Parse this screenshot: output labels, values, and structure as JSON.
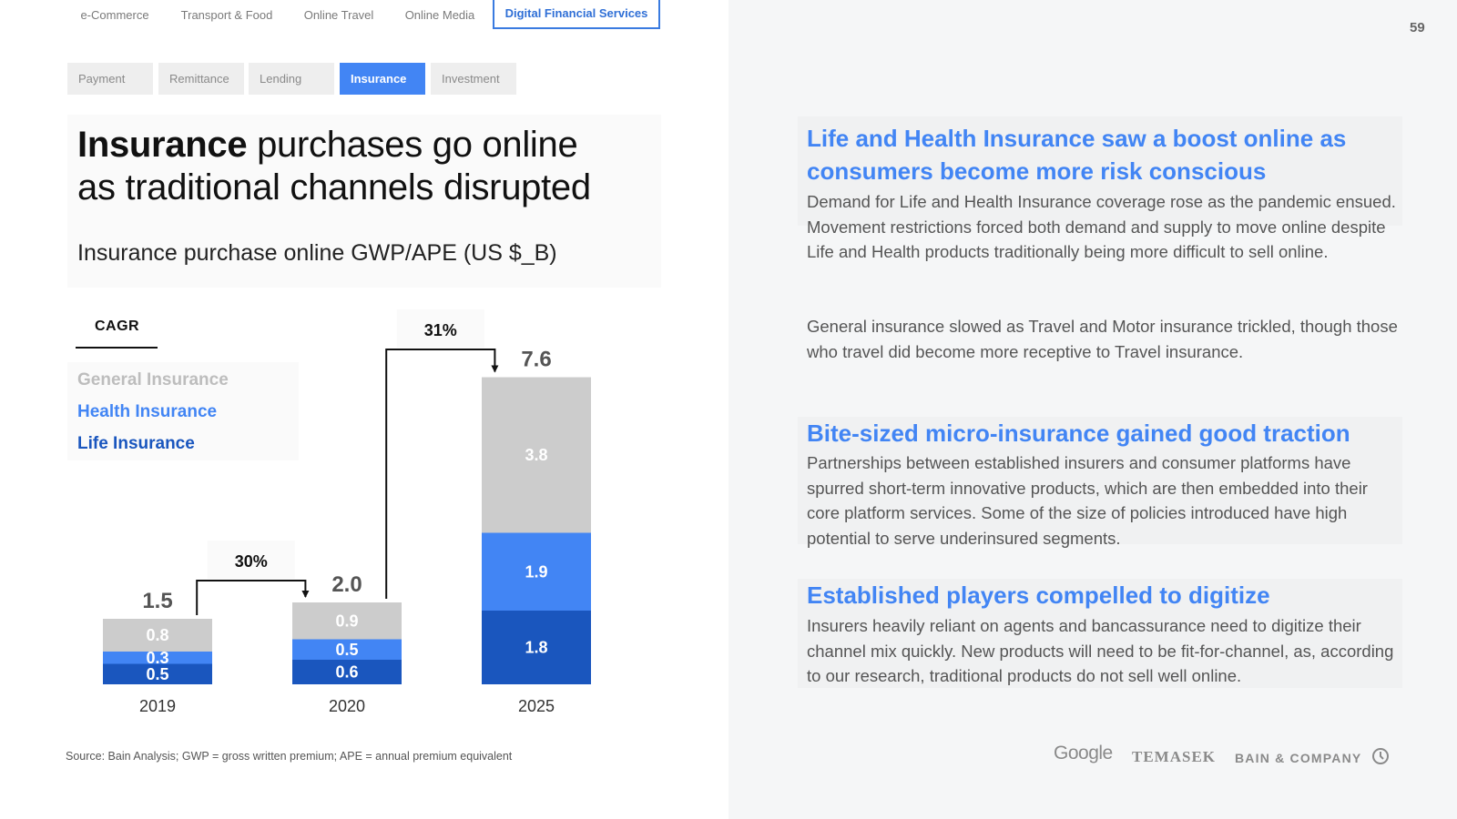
{
  "page_number": "59",
  "top_tabs": [
    {
      "label": "e-Commerce",
      "active": false
    },
    {
      "label": "Transport & Food",
      "active": false
    },
    {
      "label": "Online Travel",
      "active": false
    },
    {
      "label": "Online Media",
      "active": false
    },
    {
      "label": "Digital Financial Services",
      "active": true
    }
  ],
  "sub_tabs": [
    {
      "label": "Payment",
      "active": false
    },
    {
      "label": "Remittance",
      "active": false
    },
    {
      "label": "Lending",
      "active": false
    },
    {
      "label": "Insurance",
      "active": true
    },
    {
      "label": "Investment",
      "active": false
    }
  ],
  "title_bold": "Insurance",
  "title_rest_1": " purchases go online",
  "title_line_2": "as traditional channels disrupted",
  "colors": {
    "accent": "#4285f4",
    "life": "#1a56be",
    "health": "#4285f4",
    "general": "#cccccc",
    "tab_border": "#3a7be0"
  },
  "chart_data": {
    "type": "bar",
    "stacked": true,
    "title": "Insurance purchase online GWP/APE (US $_B)",
    "categories": [
      "2019",
      "2020",
      "2025"
    ],
    "series": [
      {
        "name": "Life Insurance",
        "color": "#1a56be",
        "values": [
          0.5,
          0.6,
          1.8
        ]
      },
      {
        "name": "Health Insurance",
        "color": "#4285f4",
        "values": [
          0.3,
          0.5,
          1.9
        ]
      },
      {
        "name": "General Insurance",
        "color": "#cccccc",
        "values": [
          0.8,
          0.9,
          3.8
        ]
      }
    ],
    "totals": [
      "1.5",
      "2.0",
      "7.6"
    ],
    "segment_labels": [
      [
        "0.5",
        "0.3",
        "0.8"
      ],
      [
        "0.6",
        "0.5",
        "0.9"
      ],
      [
        "1.8",
        "1.9",
        "3.8"
      ]
    ],
    "cagr_label": "CAGR",
    "cagr": [
      {
        "from": "2019",
        "to": "2020",
        "label": "30%"
      },
      {
        "from": "2020",
        "to": "2025",
        "label": "31%"
      }
    ],
    "legend_order": [
      "General Insurance",
      "Health Insurance",
      "Life Insurance"
    ]
  },
  "source": "Source: Bain Analysis; GWP = gross written premium; APE = annual premium equivalent",
  "sections": [
    {
      "heading": "Life and Health Insurance saw a boost online as consumers become more risk conscious",
      "paragraphs": [
        "Demand for Life and Health Insurance coverage rose as the pandemic ensued. Movement restrictions forced both demand and supply to move online despite Life and Health products traditionally being more difficult to sell online.",
        "General insurance slowed as Travel and Motor insurance trickled, though those who travel did become more receptive to Travel insurance."
      ]
    },
    {
      "heading": "Bite-sized micro-insurance gained good traction",
      "paragraphs": [
        "Partnerships between established insurers and consumer platforms have spurred short-term innovative products, which are then embedded into their core platform services. Some of the size of policies introduced have high potential to serve underinsured segments."
      ]
    },
    {
      "heading": "Established players compelled to digitize",
      "paragraphs": [
        "Insurers heavily reliant on agents and bancassurance need to digitize their channel mix quickly. New products will need to be fit-for-channel, as, according to our research, traditional products do not sell well online."
      ]
    }
  ],
  "logos": [
    "Google",
    "TEMASEK",
    "BAIN & COMPANY"
  ]
}
